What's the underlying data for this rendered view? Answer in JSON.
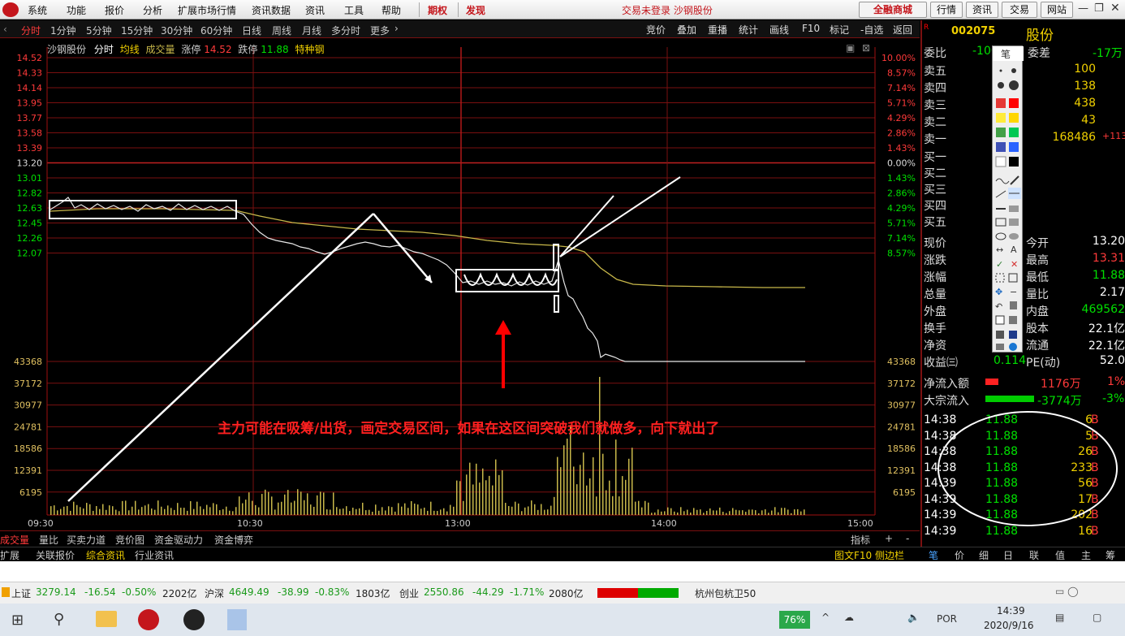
{
  "menubar": {
    "items": [
      "系统",
      "功能",
      "报价",
      "分析",
      "扩展市场行情",
      "资讯数据",
      "资讯",
      "工具",
      "帮助"
    ],
    "qiquan": "期权",
    "faxian": "发现",
    "status": "交易未登录 沙钢股份",
    "buttons": [
      "全融商城",
      "行情",
      "资讯",
      "交易",
      "网站"
    ]
  },
  "periodbar": {
    "periods": [
      "分时",
      "1分钟",
      "5分钟",
      "15分钟",
      "30分钟",
      "60分钟",
      "日线",
      "周线",
      "月线",
      "多分时",
      "更多"
    ],
    "right": [
      "竞价",
      "叠加",
      "重播",
      "统计",
      "画线",
      "F10",
      "标记",
      "-自选",
      "返回"
    ]
  },
  "chart_header": {
    "name": "沙钢股份",
    "mode": "分时",
    "avg": "均线",
    "vol": "成交量",
    "up_label": "涨停",
    "up_val": "14.52",
    "down_label": "跌停",
    "down_val": "11.88",
    "tag": "特种钢"
  },
  "axis": {
    "prices": [
      "14.52",
      "14.33",
      "14.14",
      "13.95",
      "13.77",
      "13.58",
      "13.39",
      "13.20",
      "13.01",
      "12.82",
      "12.63",
      "12.45",
      "12.26",
      "12.07"
    ],
    "pcts": [
      "10.00%",
      "8.57%",
      "7.14%",
      "5.71%",
      "4.29%",
      "2.86%",
      "1.43%",
      "0.00%",
      "1.43%",
      "2.86%",
      "4.29%",
      "5.71%",
      "7.14%",
      "8.57%"
    ],
    "vols": [
      "43368",
      "37172",
      "30977",
      "24781",
      "18586",
      "12391",
      "6195"
    ],
    "times": [
      "09:30",
      "10:30",
      "13:00",
      "14:00",
      "15:00"
    ]
  },
  "annotation": "主力可能在吸筹/出货，画定交易区间，如果在这区间突破我们就做多，向下就出了",
  "tabs": [
    "成交量",
    "量比",
    "买卖力道",
    "竞价图",
    "资金驱动力",
    "资金博弈"
  ],
  "tabs_right": [
    "指标",
    "+",
    "-"
  ],
  "tabs2": [
    "扩展",
    "关联报价",
    "综合资讯",
    "行业资讯"
  ],
  "tabs2_right": "图文F10 侧边栏",
  "tabs2_icons": [
    "笔",
    "价",
    "细",
    "日",
    "联",
    "值",
    "主",
    "筹"
  ],
  "rpanel": {
    "code": "002075",
    "name": "股份",
    "weibi_label": "委比",
    "weibi_val": "-100",
    "weicha_label": "委差",
    "weicha_val": "-17万",
    "sell": [
      {
        "label": "卖五",
        "vol": "100",
        "chg": ""
      },
      {
        "label": "卖四",
        "vol": "138",
        "chg": ""
      },
      {
        "label": "卖三",
        "vol": "438",
        "chg": ""
      },
      {
        "label": "卖二",
        "vol": "43",
        "chg": ""
      },
      {
        "label": "卖一",
        "vol": "168486",
        "chg": "+113"
      }
    ],
    "buy": [
      "买一",
      "买二",
      "买三",
      "买四",
      "买五"
    ],
    "stats_left": [
      "现价",
      "涨跌",
      "涨幅",
      "总量",
      "外盘",
      "换手",
      "净资",
      "收益㈢"
    ],
    "stats_right": [
      {
        "label": "今开",
        "val": "13.20"
      },
      {
        "label": "最高",
        "val": "13.31"
      },
      {
        "label": "最低",
        "val": "11.88"
      },
      {
        "label": "量比",
        "val": "2.17"
      },
      {
        "label": "内盘",
        "val": "469562"
      },
      {
        "label": "股本",
        "val": "22.1亿"
      },
      {
        "label": "流通",
        "val": "22.1亿"
      },
      {
        "label": "PE(动)",
        "val": "52.0"
      }
    ],
    "left_vals": [
      "",
      "-1",
      "-1",
      "95",
      "46",
      "",
      "",
      "0.114"
    ],
    "inflow_label": "净流入额",
    "inflow_val": "1176万",
    "inflow_pct": "1%",
    "block_label": "大宗流入",
    "block_val": "-3774万",
    "block_pct": "-3%",
    "ticks": [
      {
        "t": "14:38",
        "p": "11.88",
        "v": "6",
        "s": "B"
      },
      {
        "t": "14:38",
        "p": "11.88",
        "v": "5",
        "s": "B"
      },
      {
        "t": "14:38",
        "p": "11.88",
        "v": "26",
        "s": "B"
      },
      {
        "t": "14:38",
        "p": "11.88",
        "v": "233",
        "s": "B"
      },
      {
        "t": "14:39",
        "p": "11.88",
        "v": "56",
        "s": "B"
      },
      {
        "t": "14:39",
        "p": "11.88",
        "v": "17",
        "s": "B"
      },
      {
        "t": "14:39",
        "p": "11.88",
        "v": "202",
        "s": "B"
      },
      {
        "t": "14:39",
        "p": "11.88",
        "v": "16",
        "s": "B"
      }
    ]
  },
  "indexbar": {
    "sh": "上证",
    "sh_val": "3279.14",
    "sh_chg": "-16.54",
    "sh_pct": "-0.50%",
    "sh_amt": "2202亿",
    "hs": "沪深",
    "hs_val": "4649.49",
    "hs_chg": "-38.99",
    "hs_pct": "-0.83%",
    "hs_amt": "1803亿",
    "cy": "创业",
    "cy_val": "2550.86",
    "cy_chg": "-44.29",
    "cy_pct": "-1.71%",
    "cy_amt": "2080亿",
    "misc": "杭州包杭卫50"
  },
  "taskbar": {
    "battery": "76%",
    "lang": "POR",
    "time": "14:39",
    "date": "2020/9/16"
  },
  "colors": {
    "price_line": "#e8e8e8",
    "avg_line": "#c8b84a",
    "grid": "#8a1010",
    "up": "#ff3a3a",
    "down": "#00e000"
  }
}
